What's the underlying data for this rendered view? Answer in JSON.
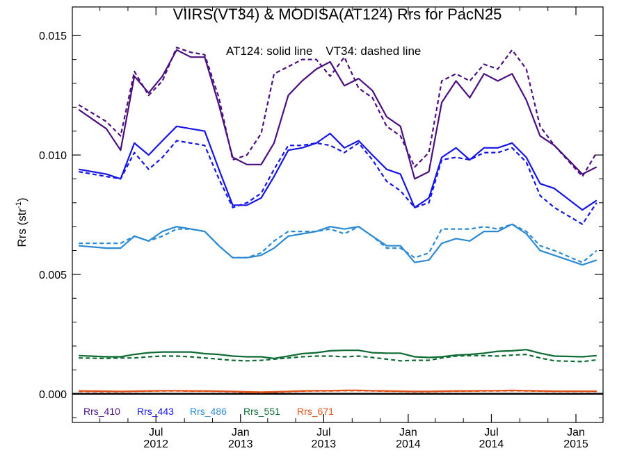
{
  "chart_data": {
    "type": "line",
    "title": "VIIRS(VT34) & MODISA(AT124)  Rrs for PacN25",
    "xlabel": "",
    "ylabel": "Rrs (str",
    "ylabel_sup": "-1",
    "ylabel_close": ")",
    "annotation": "AT124: solid line    VT34: dashed line",
    "xlim": [
      "2012-01-01",
      "2015-03-01"
    ],
    "ylim": [
      -0.0012,
      0.0162
    ],
    "y_ticks": [
      0.0,
      0.005,
      0.01,
      0.015
    ],
    "y_tick_labels": [
      "0.000",
      "0.005",
      "0.010",
      "0.015"
    ],
    "x_ticks": [
      {
        "date": "2012-07-01",
        "month": "Jul",
        "year": "2012"
      },
      {
        "date": "2013-01-01",
        "month": "Jan",
        "year": "2013"
      },
      {
        "date": "2013-07-01",
        "month": "Jul",
        "year": "2013"
      },
      {
        "date": "2014-01-01",
        "month": "Jan",
        "year": "2014"
      },
      {
        "date": "2014-07-01",
        "month": "Jul",
        "year": "2014"
      },
      {
        "date": "2015-01-01",
        "month": "Jan",
        "year": "2015"
      }
    ],
    "zero_line": true,
    "grid": false,
    "legend_position": "bottom-left",
    "line_styles": {
      "AT124": "solid",
      "VT34": "dashed"
    },
    "x": [
      "2012-01",
      "2012-02",
      "2012-03",
      "2012-04",
      "2012-05",
      "2012-06",
      "2012-07",
      "2012-08",
      "2012-09",
      "2012-10",
      "2012-11",
      "2012-12",
      "2013-01",
      "2013-02",
      "2013-03",
      "2013-04",
      "2013-05",
      "2013-06",
      "2013-07",
      "2013-08",
      "2013-09",
      "2013-10",
      "2013-11",
      "2013-12",
      "2014-01",
      "2014-02",
      "2014-03",
      "2014-04",
      "2014-05",
      "2014-06",
      "2014-07",
      "2014-08",
      "2014-09",
      "2014-10",
      "2014-11",
      "2014-12",
      "2015-01",
      "2015-02"
    ],
    "series": [
      {
        "name": "Rrs_410",
        "color": "#4b0e7f",
        "AT124": [
          0.0119,
          0.0111,
          0.0102,
          0.0133,
          0.0126,
          0.0133,
          0.0144,
          0.0141,
          0.0141,
          0.0121,
          0.0099,
          0.0096,
          0.0096,
          0.0105,
          0.0125,
          0.0131,
          0.0136,
          0.0139,
          0.0129,
          0.0132,
          0.0127,
          0.0116,
          0.0112,
          0.009,
          0.0093,
          0.0122,
          0.0131,
          0.0124,
          0.0134,
          0.0131,
          0.0134,
          0.0123,
          0.0108,
          0.0104,
          0.0092,
          0.0095
        ],
        "VT34": [
          0.0121,
          0.0114,
          0.0108,
          0.0135,
          0.0125,
          0.0131,
          0.0145,
          0.0143,
          0.0142,
          0.0124,
          0.0098,
          0.01,
          0.0109,
          0.0134,
          0.0137,
          0.014,
          0.014,
          0.0133,
          0.0141,
          0.0128,
          0.0124,
          0.0112,
          0.0108,
          0.0095,
          0.0101,
          0.0131,
          0.0134,
          0.0131,
          0.0138,
          0.0136,
          0.0144,
          0.0136,
          0.0112,
          0.0104,
          0.0091,
          0.0101
        ]
      },
      {
        "name": "Rrs_443",
        "color": "#1414e6",
        "AT124": [
          0.0094,
          0.0092,
          0.009,
          0.0105,
          0.01,
          0.0106,
          0.0112,
          0.0111,
          0.011,
          0.0094,
          0.0079,
          0.0079,
          0.0082,
          0.0091,
          0.0102,
          0.0103,
          0.0105,
          0.0109,
          0.0103,
          0.0106,
          0.01,
          0.0094,
          0.0092,
          0.0078,
          0.0082,
          0.0099,
          0.0103,
          0.0098,
          0.0103,
          0.0103,
          0.0105,
          0.0099,
          0.0088,
          0.0086,
          0.0077,
          0.0081
        ],
        "VT34": [
          0.0093,
          0.0091,
          0.009,
          0.0101,
          0.0094,
          0.0099,
          0.0106,
          0.0105,
          0.0104,
          0.009,
          0.0078,
          0.008,
          0.0084,
          0.0094,
          0.0104,
          0.0104,
          0.0105,
          0.0104,
          0.0101,
          0.0105,
          0.0098,
          0.0089,
          0.0085,
          0.0078,
          0.008,
          0.0098,
          0.0099,
          0.0098,
          0.0101,
          0.0101,
          0.0103,
          0.0097,
          0.0083,
          0.0078,
          0.0071,
          0.008
        ]
      },
      {
        "name": "Rrs_486",
        "color": "#2b8ad1",
        "AT124": [
          0.0062,
          0.0061,
          0.0061,
          0.0066,
          0.0064,
          0.0068,
          0.007,
          0.0069,
          0.0068,
          0.0062,
          0.0057,
          0.0057,
          0.0058,
          0.0061,
          0.0066,
          0.0067,
          0.0068,
          0.007,
          0.0069,
          0.007,
          0.0066,
          0.0062,
          0.0062,
          0.0055,
          0.0056,
          0.0063,
          0.0065,
          0.0064,
          0.0068,
          0.0068,
          0.0071,
          0.0067,
          0.006,
          0.0058,
          0.0054,
          0.0056
        ],
        "VT34": [
          0.0063,
          0.0063,
          0.0063,
          0.0066,
          0.0064,
          0.0066,
          0.0069,
          0.0069,
          0.0068,
          0.0062,
          0.0057,
          0.0057,
          0.0059,
          0.0064,
          0.0068,
          0.0068,
          0.0068,
          0.0069,
          0.0067,
          0.007,
          0.0066,
          0.0061,
          0.0061,
          0.0057,
          0.0059,
          0.0069,
          0.0069,
          0.0069,
          0.007,
          0.0069,
          0.0071,
          0.0068,
          0.0062,
          0.006,
          0.0055,
          0.006
        ]
      },
      {
        "name": "Rrs_551",
        "color": "#0e6b33",
        "AT124": [
          0.0016,
          0.00155,
          0.00155,
          0.00165,
          0.00172,
          0.00175,
          0.00175,
          0.00175,
          0.00168,
          0.00165,
          0.00158,
          0.00155,
          0.00155,
          0.00148,
          0.00158,
          0.00168,
          0.00172,
          0.0018,
          0.00182,
          0.00182,
          0.00172,
          0.0017,
          0.0017,
          0.00155,
          0.00152,
          0.00155,
          0.00162,
          0.00165,
          0.0017,
          0.00178,
          0.0018,
          0.00185,
          0.0017,
          0.00158,
          0.00155,
          0.0016
        ],
        "VT34": [
          0.0015,
          0.00148,
          0.0015,
          0.0015,
          0.00155,
          0.00158,
          0.00158,
          0.00155,
          0.0015,
          0.00145,
          0.0014,
          0.00138,
          0.0014,
          0.00145,
          0.0015,
          0.00155,
          0.00158,
          0.00158,
          0.00155,
          0.00158,
          0.00152,
          0.00145,
          0.00138,
          0.0014,
          0.0014,
          0.0015,
          0.00158,
          0.0016,
          0.0016,
          0.00158,
          0.00162,
          0.00165,
          0.0015,
          0.00138,
          0.00135,
          0.00142
        ]
      },
      {
        "name": "Rrs_671",
        "color": "#e0521a",
        "AT124": [
          0.00012,
          0.00011,
          0.0001,
          0.00011,
          0.00012,
          0.00013,
          0.00013,
          0.00012,
          0.00012,
          0.00011,
          0.0001,
          8e-05,
          7e-05,
          8e-05,
          0.0001,
          0.00012,
          0.00013,
          0.00013,
          0.00014,
          0.00014,
          0.00013,
          0.00012,
          0.00011,
          0.0001,
          0.0001,
          0.00011,
          0.00012,
          0.00012,
          0.00013,
          0.00013,
          0.00014,
          0.00013,
          0.00012,
          0.00011,
          0.00011,
          0.00011
        ],
        "VT34": [
          0.0001,
          9e-05,
          9e-05,
          0.0001,
          0.00011,
          0.00012,
          0.00012,
          0.00011,
          0.00011,
          0.0001,
          9e-05,
          6e-05,
          5e-05,
          7e-05,
          9e-05,
          0.00011,
          0.00012,
          0.00012,
          0.00013,
          0.00013,
          0.00012,
          0.00011,
          0.0001,
          9e-05,
          9e-05,
          0.0001,
          0.00011,
          0.00011,
          0.00012,
          0.00012,
          0.00013,
          0.00012,
          0.00011,
          0.0001,
          0.0001,
          0.0001
        ]
      }
    ],
    "series_x_index": [
      "2012-01",
      "2012-03",
      "2012-04",
      "2012-05",
      "2012-06",
      "2012-07",
      "2012-08",
      "2012-09",
      "2012-10",
      "2012-11",
      "2012-12",
      "2013-01",
      "2013-02",
      "2013-03",
      "2013-04",
      "2013-05",
      "2013-06",
      "2013-07",
      "2013-08",
      "2013-09",
      "2013-10",
      "2013-11",
      "2013-12",
      "2014-01",
      "2014-02",
      "2014-03",
      "2014-04",
      "2014-05",
      "2014-06",
      "2014-07",
      "2014-08",
      "2014-09",
      "2014-10",
      "2014-11",
      "2015-01",
      "2015-02"
    ]
  }
}
